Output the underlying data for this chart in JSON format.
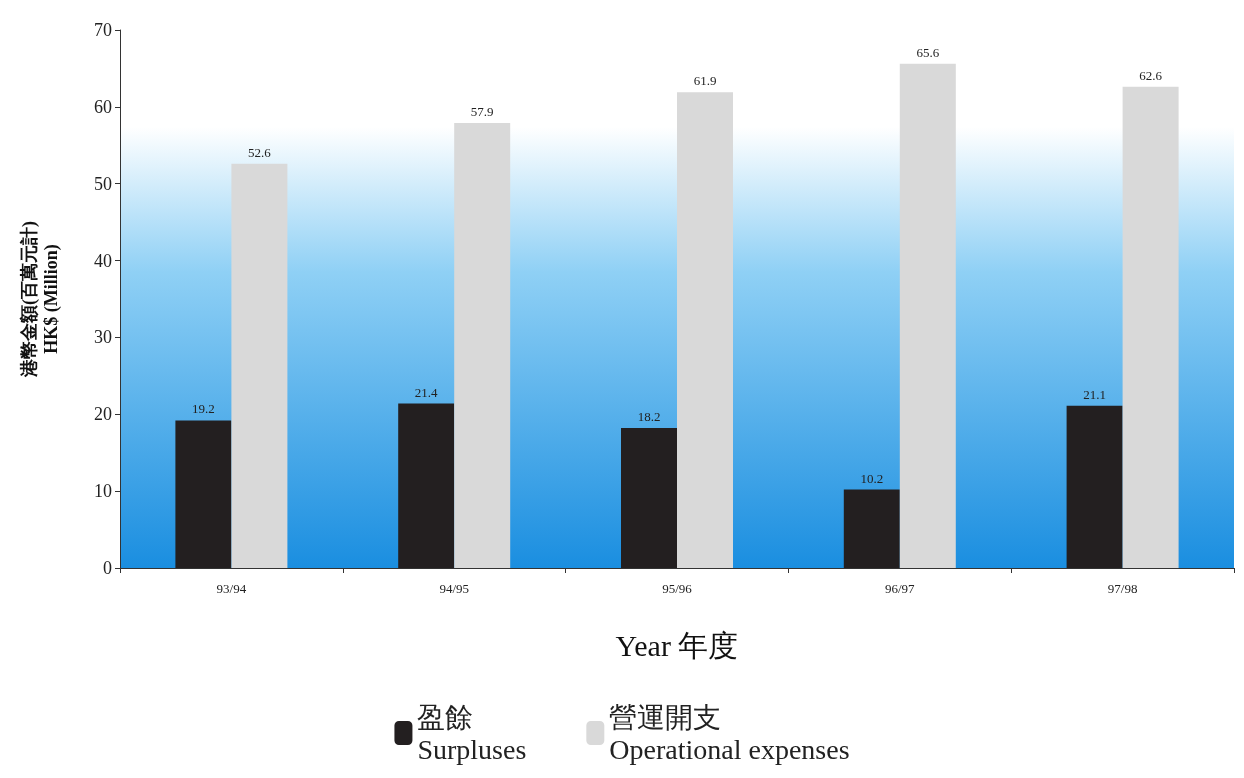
{
  "chart_data": {
    "type": "bar",
    "xlabel": "Year 年度",
    "ylabel": "港幣金額(百萬元計)\nHK$ (Million)",
    "categories": [
      "93/94",
      "94/95",
      "95/96",
      "96/97",
      "97/98"
    ],
    "series": [
      {
        "name": "盈餘\nSurpluses",
        "color": "#231f20",
        "values": [
          19.2,
          21.4,
          18.2,
          10.2,
          21.1
        ]
      },
      {
        "name": "營運開支\nOperational expenses",
        "color": "#d9d9d9",
        "values": [
          52.6,
          57.9,
          61.9,
          65.6,
          62.6
        ]
      }
    ],
    "ylim": [
      0,
      70
    ],
    "yticks": [
      0,
      10,
      20,
      30,
      40,
      50,
      60,
      70
    ],
    "data_labels": true,
    "legend": "bottom",
    "grid": false
  }
}
